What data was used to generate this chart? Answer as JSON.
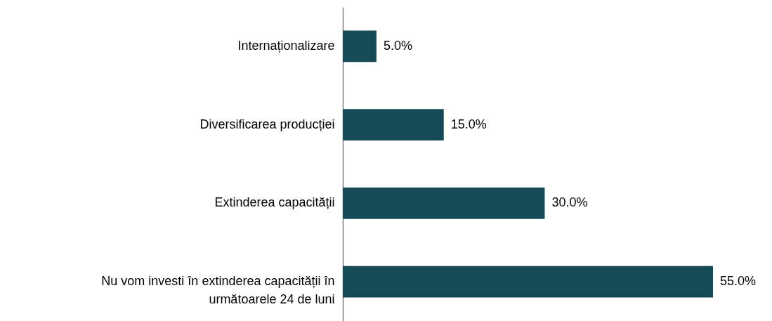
{
  "chart_data": {
    "type": "bar",
    "orientation": "horizontal",
    "categories": [
      "Internaționalizare",
      "Diversificarea producției",
      "Extinderea capacității",
      "Nu vom investi în extinderea capacității în următoarele 24 de luni"
    ],
    "values": [
      5,
      15,
      30,
      55
    ],
    "value_labels": [
      "5.0%",
      "15.0%",
      "30.0%",
      "55.0%"
    ],
    "color": "#174a57"
  }
}
